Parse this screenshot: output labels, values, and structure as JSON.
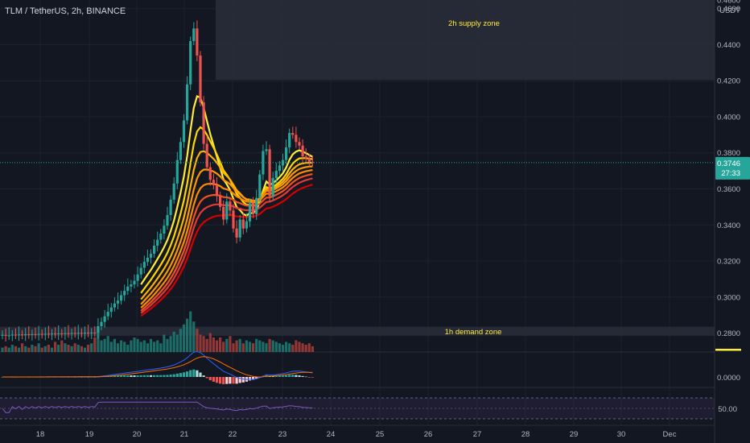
{
  "header": {
    "symbol": "TLM / TetherUS, 2h, BINANCE"
  },
  "colors": {
    "background": "#131722",
    "up": "#26a69a",
    "down": "#ef5350",
    "volume_up": "#1e7b73",
    "volume_down": "#a83e3b",
    "zone": "#2a2e39",
    "price_line": "#26a69a",
    "ribbon": [
      "#ffeb3b",
      "#ffd600",
      "#ffb300",
      "#ff9800",
      "#fb8c00",
      "#f4511e",
      "#e53935",
      "#d50000"
    ],
    "macd_line": "#2962ff",
    "signal_line": "#ff6d00",
    "rsi_line": "#7e57c2"
  },
  "chart_data": {
    "type": "candlestick",
    "price_axis": {
      "unit": "USDT",
      "ticks": [
        "0.4600",
        "0.4400",
        "0.4200",
        "0.4000",
        "0.3800",
        "0.3600",
        "0.3400",
        "0.3200",
        "0.3000",
        "0.2800"
      ],
      "range": [
        0.2695,
        0.4648
      ]
    },
    "x_axis": {
      "ticks": [
        "18",
        "19",
        "20",
        "21",
        "22",
        "23",
        "24",
        "25",
        "26",
        "27",
        "28",
        "29",
        "30",
        "Dec"
      ]
    },
    "last_price": {
      "value": "0.3746",
      "countdown": "27:33"
    },
    "zones": [
      {
        "label": "2h supply zone",
        "top": 0.4648,
        "bottom": 0.4205
      },
      {
        "label": "1h demand zone",
        "top": 0.2835,
        "bottom": 0.2785
      }
    ],
    "closes": [
      0.279,
      0.2785,
      0.2787,
      0.2791,
      0.2789,
      0.2792,
      0.2788,
      0.2793,
      0.279,
      0.2794,
      0.2791,
      0.2795,
      0.2792,
      0.2796,
      0.2793,
      0.2797,
      0.2794,
      0.2798,
      0.2795,
      0.2799,
      0.2796,
      0.28,
      0.2797,
      0.2801,
      0.2798,
      0.2802,
      0.2799,
      0.2803,
      0.2801,
      0.2838,
      0.2862,
      0.2893,
      0.2918,
      0.2942,
      0.2964,
      0.298,
      0.301,
      0.3034,
      0.3058,
      0.307,
      0.309,
      0.3125,
      0.3162,
      0.3195,
      0.3218,
      0.324,
      0.3285,
      0.3318,
      0.3352,
      0.3396,
      0.3455,
      0.354,
      0.363,
      0.376,
      0.386,
      0.398,
      0.418,
      0.442,
      0.449,
      0.434,
      0.408,
      0.385,
      0.372,
      0.365,
      0.362,
      0.356,
      0.35,
      0.343,
      0.353,
      0.348,
      0.338,
      0.333,
      0.343,
      0.338,
      0.342,
      0.352,
      0.346,
      0.355,
      0.368,
      0.381,
      0.382,
      0.356,
      0.366,
      0.37,
      0.373,
      0.376,
      0.383,
      0.391,
      0.39,
      0.386,
      0.384,
      0.378,
      0.377,
      0.375,
      0.3746
    ],
    "opens": [
      0.2788,
      0.279,
      0.2785,
      0.2787,
      0.2791,
      0.2789,
      0.2792,
      0.2788,
      0.2793,
      0.279,
      0.2794,
      0.2791,
      0.2795,
      0.2792,
      0.2796,
      0.2793,
      0.2797,
      0.2794,
      0.2798,
      0.2795,
      0.2799,
      0.2796,
      0.28,
      0.2797,
      0.2801,
      0.2798,
      0.2802,
      0.2799,
      0.2803,
      0.2801,
      0.2838,
      0.2862,
      0.2893,
      0.2918,
      0.2942,
      0.2964,
      0.298,
      0.301,
      0.3034,
      0.3058,
      0.307,
      0.309,
      0.3125,
      0.3162,
      0.3195,
      0.3218,
      0.324,
      0.3285,
      0.3318,
      0.3352,
      0.3396,
      0.3455,
      0.354,
      0.363,
      0.376,
      0.386,
      0.398,
      0.418,
      0.442,
      0.449,
      0.434,
      0.408,
      0.385,
      0.372,
      0.365,
      0.362,
      0.356,
      0.35,
      0.343,
      0.353,
      0.348,
      0.338,
      0.333,
      0.343,
      0.338,
      0.342,
      0.352,
      0.346,
      0.355,
      0.368,
      0.381,
      0.382,
      0.356,
      0.366,
      0.37,
      0.373,
      0.376,
      0.383,
      0.391,
      0.39,
      0.386,
      0.384,
      0.378,
      0.377,
      0.375
    ],
    "volumes": [
      0.3,
      0.4,
      0.3,
      0.5,
      0.4,
      0.3,
      0.6,
      0.4,
      0.3,
      0.5,
      0.4,
      0.6,
      0.3,
      0.4,
      0.5,
      0.3,
      0.7,
      0.5,
      0.8,
      0.6,
      0.5,
      0.4,
      0.6,
      0.5,
      0.4,
      0.3,
      0.5,
      0.6,
      1.0,
      1.3,
      0.8,
      0.9,
      1.1,
      0.7,
      0.9,
      0.6,
      0.8,
      0.7,
      0.5,
      0.8,
      1.0,
      0.9,
      0.7,
      0.8,
      0.6,
      0.9,
      0.7,
      0.8,
      0.6,
      1.2,
      0.9,
      1.1,
      1.4,
      1.2,
      1.6,
      1.9,
      2.3,
      2.8,
      2.1,
      1.6,
      1.2,
      1.1,
      0.9,
      1.3,
      1.0,
      0.8,
      1.0,
      0.7,
      0.9,
      1.1,
      0.6,
      0.8,
      0.9,
      0.6,
      0.8,
      0.7,
      0.6,
      0.9,
      0.8,
      0.7,
      0.6,
      0.9,
      0.8,
      0.7,
      0.6,
      0.5,
      0.7,
      0.6,
      0.5,
      0.8,
      0.7,
      0.6,
      0.5,
      0.6,
      0.4
    ],
    "macd_axis_label": "0.0000",
    "rsi_axis_label": "50.00"
  }
}
